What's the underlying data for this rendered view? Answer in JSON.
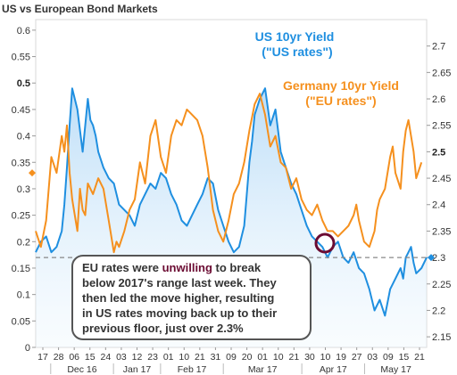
{
  "chart_data": {
    "type": "line",
    "title": "US vs European Bond Markets",
    "left_axis": {
      "range": [
        0,
        0.62
      ],
      "ticks": [
        {
          "value": 0,
          "label": "0",
          "bold": false
        },
        {
          "value": 0.05,
          "label": "0.05",
          "bold": false
        },
        {
          "value": 0.1,
          "label": "0.1",
          "bold": false
        },
        {
          "value": 0.15,
          "label": "0.15",
          "bold": false
        },
        {
          "value": 0.2,
          "label": "0.2",
          "bold": false
        },
        {
          "value": 0.25,
          "label": "0.25",
          "bold": false
        },
        {
          "value": 0.3,
          "label": "0.3",
          "bold": false
        },
        {
          "value": 0.35,
          "label": "0.35",
          "bold": false
        },
        {
          "value": 0.4,
          "label": "0.4",
          "bold": false
        },
        {
          "value": 0.45,
          "label": "0.45",
          "bold": false
        },
        {
          "value": 0.5,
          "label": "0.5",
          "bold": true
        },
        {
          "value": 0.55,
          "label": "0.55",
          "bold": false
        },
        {
          "value": 0.6,
          "label": "0.6",
          "bold": false
        }
      ]
    },
    "right_axis": {
      "range": [
        2.13,
        2.75
      ],
      "ticks": [
        {
          "value": 2.15,
          "label": "2.15",
          "bold": false
        },
        {
          "value": 2.2,
          "label": "2.2",
          "bold": false
        },
        {
          "value": 2.25,
          "label": "2.25",
          "bold": false
        },
        {
          "value": 2.3,
          "label": "2.3",
          "bold": false
        },
        {
          "value": 2.35,
          "label": "2.35",
          "bold": false
        },
        {
          "value": 2.4,
          "label": "2.4",
          "bold": false
        },
        {
          "value": 2.45,
          "label": "2.45",
          "bold": false
        },
        {
          "value": 2.5,
          "label": "2.5",
          "bold": true
        },
        {
          "value": 2.55,
          "label": "2.55",
          "bold": false
        },
        {
          "value": 2.6,
          "label": "2.6",
          "bold": false
        },
        {
          "value": 2.65,
          "label": "2.65",
          "bold": false
        },
        {
          "value": 2.7,
          "label": "2.7",
          "bold": false
        }
      ]
    },
    "x_tick_labels": [
      "17",
      "28",
      "06",
      "15",
      "24",
      "03",
      "12",
      "23",
      "01",
      "10",
      "21",
      "31",
      "09",
      "20",
      "01",
      "10",
      "21",
      "30",
      "10",
      "19",
      "27",
      "03",
      "09",
      "15",
      "21"
    ],
    "x_months": [
      "Dec 16",
      "Jan 17",
      "Feb 17",
      "Mar 17",
      "Apr 17",
      "May 17"
    ],
    "reference_line": {
      "axis": "right",
      "value": 2.3
    },
    "annotations": {
      "us_label_1": "US 10yr Yield",
      "us_label_2": "(\"US rates\")",
      "de_label_1": "Germany 10yr Yield",
      "de_label_2": "(\"EU rates\")",
      "callout_line_1_pre": "EU rates were ",
      "callout_line_1_em": "unwilling",
      "callout_line_1_post": " to break",
      "callout_line_2": "below 2017's range last week.  They",
      "callout_line_3": "then led the move higher, resulting",
      "callout_line_4": "in US rates moving back up to their",
      "callout_line_5": "previous floor, just over 2.3%"
    },
    "series": [
      {
        "name": "US 10yr Yield",
        "axis": "right",
        "color": "#1f8fe0",
        "area": true,
        "x": [
          0,
          2,
          4,
          6,
          8,
          10,
          11,
          12,
          13,
          14,
          16,
          18,
          20,
          21,
          22,
          23,
          24,
          26,
          28,
          30,
          32,
          34,
          36,
          38,
          39,
          40,
          42,
          44,
          46,
          48,
          50,
          52,
          54,
          56,
          58,
          60,
          62,
          64,
          66,
          68,
          70,
          72,
          74,
          76,
          78,
          79,
          80,
          81,
          82,
          83,
          84,
          86,
          88,
          90,
          92,
          94,
          96,
          98,
          100,
          102,
          104,
          106,
          108,
          110,
          112,
          114,
          116,
          118,
          120,
          122,
          124,
          126,
          128,
          130,
          132,
          134,
          136,
          138,
          140,
          141,
          142,
          143,
          144,
          145,
          146,
          148,
          150
        ],
        "y": [
          2.31,
          2.33,
          2.34,
          2.31,
          2.32,
          2.35,
          2.4,
          2.47,
          2.55,
          2.62,
          2.58,
          2.5,
          2.6,
          2.56,
          2.55,
          2.53,
          2.5,
          2.47,
          2.45,
          2.44,
          2.4,
          2.39,
          2.38,
          2.36,
          2.38,
          2.4,
          2.42,
          2.44,
          2.43,
          2.46,
          2.45,
          2.42,
          2.4,
          2.37,
          2.36,
          2.38,
          2.4,
          2.42,
          2.45,
          2.44,
          2.39,
          2.36,
          2.33,
          2.31,
          2.32,
          2.34,
          2.36,
          2.42,
          2.48,
          2.52,
          2.57,
          2.6,
          2.62,
          2.55,
          2.58,
          2.5,
          2.47,
          2.44,
          2.42,
          2.39,
          2.36,
          2.34,
          2.33,
          2.32,
          2.3,
          2.32,
          2.33,
          2.3,
          2.29,
          2.31,
          2.28,
          2.27,
          2.24,
          2.2,
          2.22,
          2.19,
          2.24,
          2.26,
          2.28,
          2.26,
          2.3,
          2.31,
          2.32,
          2.29,
          2.27,
          2.28,
          2.3
        ]
      },
      {
        "name": "Germany 10yr Yield",
        "axis": "left",
        "color": "#f5901e",
        "area": false,
        "x": [
          0,
          2,
          4,
          6,
          8,
          10,
          11,
          12,
          13,
          14,
          16,
          17,
          18,
          19,
          20,
          22,
          24,
          26,
          28,
          29,
          30,
          31,
          32,
          34,
          36,
          38,
          40,
          42,
          44,
          46,
          48,
          50,
          52,
          54,
          56,
          58,
          60,
          62,
          64,
          66,
          68,
          70,
          72,
          74,
          76,
          78,
          80,
          82,
          84,
          86,
          88,
          90,
          92,
          94,
          96,
          98,
          100,
          102,
          104,
          106,
          108,
          110,
          112,
          114,
          116,
          118,
          120,
          122,
          123,
          124,
          126,
          128,
          130,
          131,
          132,
          134,
          136,
          137,
          138,
          140,
          141,
          142,
          143,
          144,
          145,
          146,
          148
        ],
        "y": [
          0.22,
          0.19,
          0.24,
          0.36,
          0.33,
          0.4,
          0.37,
          0.42,
          0.33,
          0.28,
          0.22,
          0.3,
          0.26,
          0.25,
          0.31,
          0.29,
          0.32,
          0.3,
          0.24,
          0.21,
          0.18,
          0.2,
          0.19,
          0.22,
          0.26,
          0.28,
          0.35,
          0.31,
          0.4,
          0.43,
          0.36,
          0.33,
          0.4,
          0.43,
          0.42,
          0.45,
          0.44,
          0.43,
          0.4,
          0.34,
          0.26,
          0.22,
          0.2,
          0.24,
          0.29,
          0.31,
          0.35,
          0.41,
          0.46,
          0.48,
          0.44,
          0.38,
          0.4,
          0.35,
          0.34,
          0.3,
          0.32,
          0.28,
          0.26,
          0.25,
          0.27,
          0.24,
          0.22,
          0.22,
          0.21,
          0.22,
          0.23,
          0.25,
          0.27,
          0.24,
          0.2,
          0.19,
          0.22,
          0.26,
          0.28,
          0.3,
          0.36,
          0.38,
          0.33,
          0.3,
          0.37,
          0.41,
          0.43,
          0.4,
          0.37,
          0.32,
          0.35
        ]
      }
    ]
  }
}
